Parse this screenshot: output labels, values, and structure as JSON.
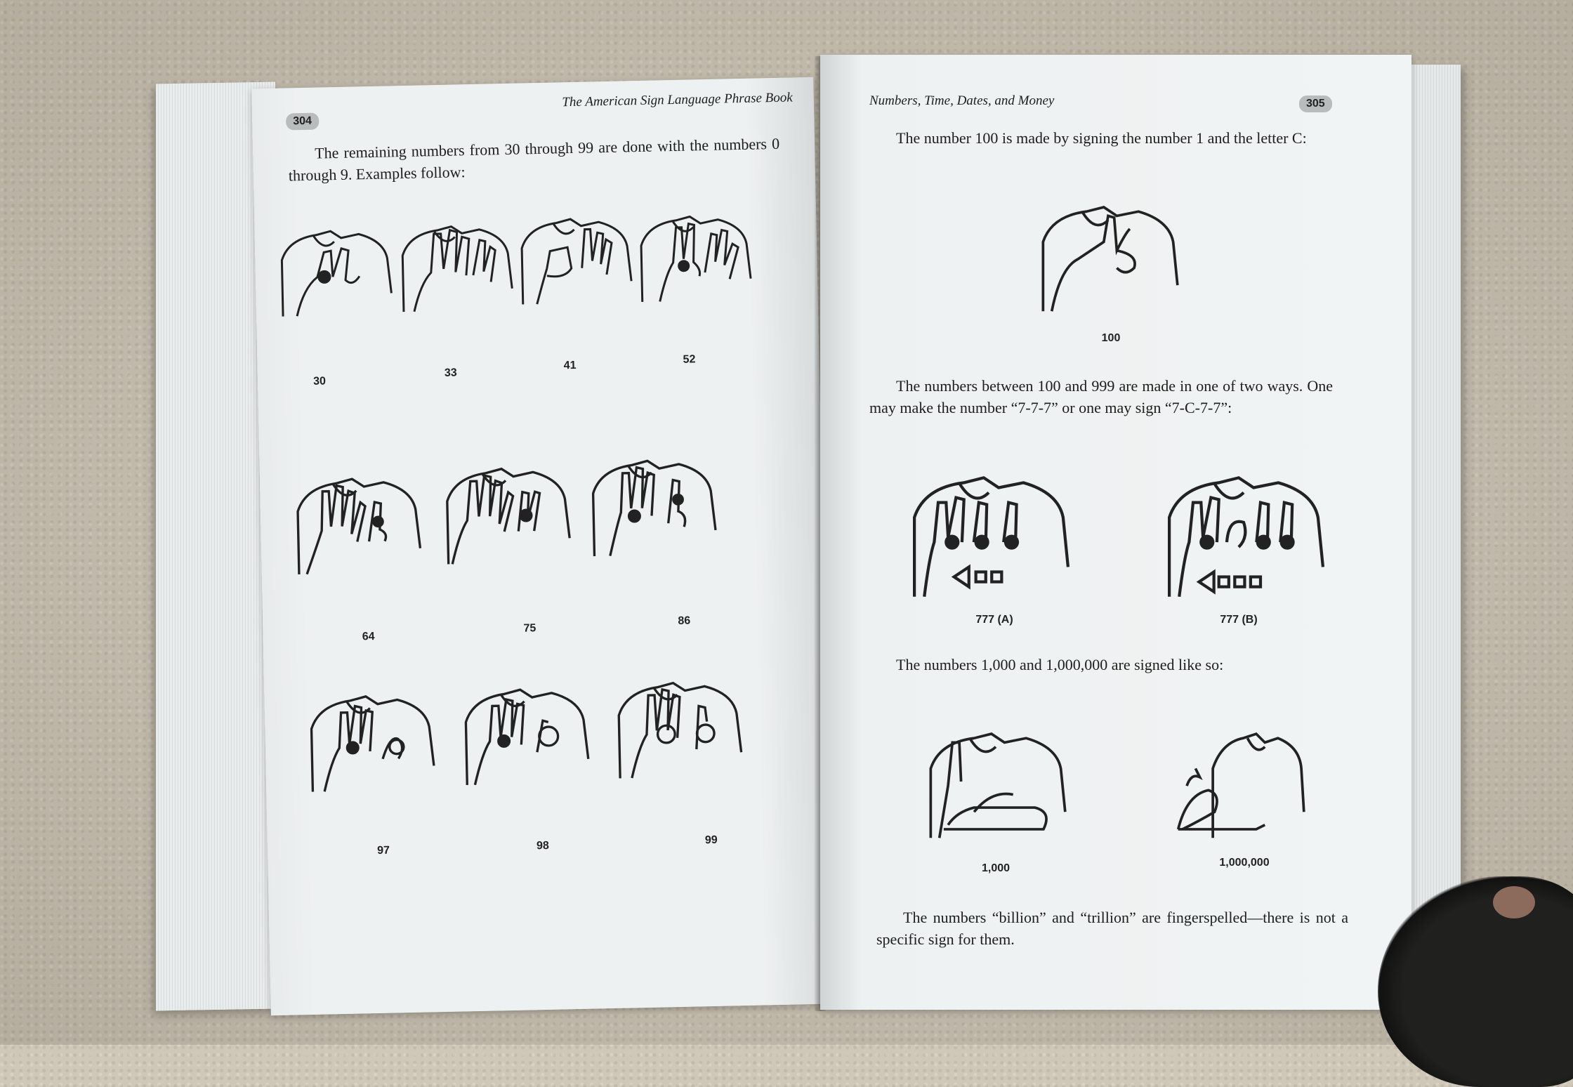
{
  "left_page": {
    "running_head": "The American Sign Language Phrase Book",
    "folio": "304",
    "intro": "The remaining numbers from 30 through 99 are done with the numbers 0 through 9. Examples follow:",
    "signs": [
      {
        "label": "30"
      },
      {
        "label": "33"
      },
      {
        "label": "41"
      },
      {
        "label": "52"
      },
      {
        "label": "64"
      },
      {
        "label": "75"
      },
      {
        "label": "86"
      },
      {
        "label": "97"
      },
      {
        "label": "98"
      },
      {
        "label": "99"
      }
    ]
  },
  "right_page": {
    "running_head": "Numbers, Time, Dates, and Money",
    "folio": "305",
    "para1": "The number 100 is made by signing the number 1 and the letter C:",
    "sign_100": "100",
    "para2": "The numbers between 100 and 999 are made in one of two ways. One may make the number “7-7-7” or one may sign “7-C-7-7”:",
    "sign_777a": "777 (A)",
    "sign_777b": "777 (B)",
    "para3": "The numbers 1,000 and 1,000,000 are signed like so:",
    "sign_1000": "1,000",
    "sign_1000000": "1,000,000",
    "para4": "The numbers “billion” and “trillion” are fingerspelled—there is not a specific sign for them."
  }
}
